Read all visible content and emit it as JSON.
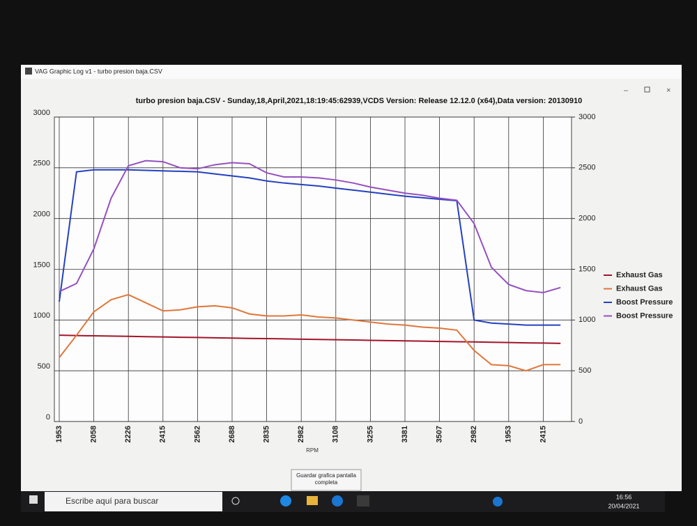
{
  "window": {
    "title": "VAG Graphic Log  v1 -  turbo presion baja.CSV"
  },
  "chart_data": {
    "type": "line",
    "title": "turbo presion baja.CSV - Sunday,18,April,2021,18:19:45:62939,VCDS Version: Release 12.12.0 (x64),Data version: 20130910",
    "x_label": "RPM",
    "categories": [
      "1953",
      null,
      "2058",
      null,
      "2226",
      null,
      "2415",
      null,
      "2562",
      null,
      "2688",
      null,
      "2835",
      null,
      "2982",
      null,
      "3108",
      null,
      "3255",
      null,
      "3381",
      null,
      "3507",
      null,
      "2982",
      null,
      "1953",
      null,
      "2415",
      null
    ],
    "series": [
      {
        "name": "Exhaust Gas",
        "color": "#a3142a",
        "values": [
          850,
          847,
          844,
          842,
          839,
          836,
          833,
          830,
          828,
          825,
          822,
          819,
          817,
          814,
          811,
          808,
          806,
          803,
          800,
          797,
          795,
          792,
          789,
          786,
          784,
          781,
          778,
          775,
          773,
          770
        ]
      },
      {
        "name": "Exhaust Gas",
        "color": "#e0763a",
        "values": [
          630,
          850,
          1080,
          1200,
          1250,
          1170,
          1090,
          1100,
          1130,
          1140,
          1120,
          1060,
          1040,
          1040,
          1050,
          1030,
          1020,
          1000,
          980,
          960,
          950,
          930,
          920,
          900,
          700,
          560,
          550,
          500,
          560,
          560
        ]
      },
      {
        "name": "Boost Pressure",
        "color": "#2440c0",
        "values": [
          1180,
          2460,
          2480,
          2480,
          2480,
          2475,
          2470,
          2465,
          2460,
          2440,
          2420,
          2400,
          2370,
          2350,
          2335,
          2320,
          2300,
          2280,
          2260,
          2240,
          2220,
          2205,
          2190,
          2175,
          1000,
          970,
          960,
          950,
          950,
          950
        ]
      },
      {
        "name": "Boost Pressure",
        "color": "#9550c0",
        "values": [
          1280,
          1360,
          1700,
          2200,
          2520,
          2570,
          2560,
          2500,
          2490,
          2530,
          2550,
          2540,
          2450,
          2410,
          2410,
          2400,
          2380,
          2350,
          2310,
          2280,
          2250,
          2230,
          2200,
          2180,
          1950,
          1520,
          1350,
          1290,
          1270,
          1320
        ]
      }
    ],
    "ylim": [
      0,
      3000
    ],
    "yticks": [
      0,
      500,
      1000,
      1500,
      2000,
      2500,
      3000
    ],
    "y2lim": [
      0,
      3000
    ],
    "y2ticks": [
      0,
      500,
      1000,
      1500,
      2000,
      2500,
      3000
    ],
    "grid": true,
    "legend": "right"
  },
  "button": {
    "label": "Guardar grafica pantalla completa"
  },
  "taskbar": {
    "search": "Escribe aquí para buscar",
    "time": "16:56",
    "date": "20/04/2021"
  }
}
